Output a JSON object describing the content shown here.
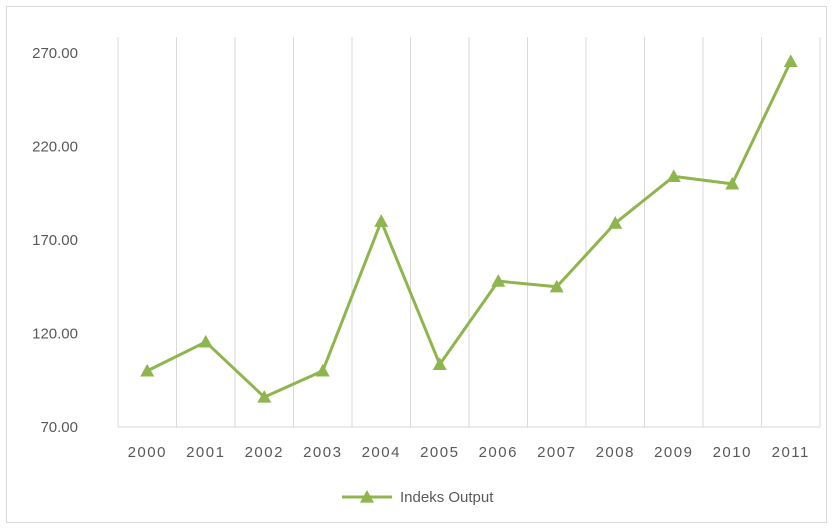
{
  "chart_data": {
    "type": "line",
    "title": "",
    "xlabel": "",
    "ylabel": "",
    "categories": [
      "2000",
      "2001",
      "2002",
      "2003",
      "2004",
      "2005",
      "2006",
      "2007",
      "2008",
      "2009",
      "2010",
      "2011"
    ],
    "series": [
      {
        "name": "Indeks Output",
        "values": [
          100.0,
          115.5,
          86.0,
          100.0,
          180.0,
          103.5,
          148.0,
          145.0,
          179.0,
          204.0,
          200.0,
          265.5
        ]
      }
    ],
    "ylim": [
      70,
      270
    ],
    "yticks": [
      "70.00",
      "120.00",
      "170.00",
      "220.00",
      "270.00"
    ],
    "grid": "vertical",
    "legend": "bottom",
    "marker": "triangle",
    "color": "#8fb54f"
  }
}
